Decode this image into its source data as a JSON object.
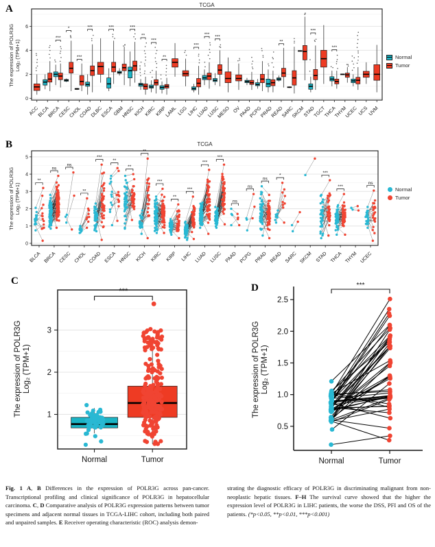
{
  "colors": {
    "normal_box": "#1CB4C5",
    "tumor_box": "#EE3B23",
    "normal_dot": "#29B8D3",
    "tumor_dot": "#F04432",
    "outlier_dot": "#3d3d3d"
  },
  "panels": {
    "a": {
      "letter": "A",
      "title": "TCGA",
      "ylabel1": "The expression of POLR3G",
      "ylabel2": "Log₂ (TPM+1)",
      "legend_normal": "Normal",
      "legend_tumor": "Tumor"
    },
    "b": {
      "letter": "B",
      "title": "TCGA",
      "ylabel1": "The expression of POLR3G",
      "ylabel2": "Log₂ (TPM+1)",
      "legend_normal": "Normal",
      "legend_tumor": "Tumor"
    },
    "c": {
      "letter": "C",
      "ylabel1": "The expression of POLR3G",
      "ylabel2": "Log₂ (TPM+1)"
    },
    "d": {
      "letter": "D",
      "ylabel1": "The expression of POLR3G",
      "ylabel2": "Log₂ (TPM+1)"
    }
  },
  "caption": {
    "left": [
      {
        "t": "Fig. 1  ",
        "b": true
      },
      {
        "t": "A",
        "b": true
      },
      {
        "t": ", "
      },
      {
        "t": "B",
        "b": true
      },
      {
        "t": " Differences in the expression of POLR3G across pan-cancer. Transcriptional profiling and clinical significance of POLR3G in hepatocellular carcinoma. "
      },
      {
        "t": "C",
        "b": true
      },
      {
        "t": ", "
      },
      {
        "t": "D",
        "b": true
      },
      {
        "t": " Comparative analysis of POLR3G expression patterns between tumor specimens and adjacent normal tissues in TCGA-LIHC cohort, including both paired and unpaired samples. "
      },
      {
        "t": "E",
        "b": true
      },
      {
        "t": " Receiver operating characteristic (ROC) analysis demon-"
      }
    ],
    "right": [
      {
        "t": "strating the diagnostic efficacy of POLR3G in discriminating malignant from non-neoplastic hepatic tissues. "
      },
      {
        "t": "F–H",
        "b": true
      },
      {
        "t": " The survival curve showed that the higher the expression level of POLR3G in LIHC patients, the worse the DSS, PFI and OS of the patients. "
      },
      {
        "t": "(*p<0.05, **p<0.01, ***p<0.001)",
        "i": true
      }
    ]
  },
  "chart_data": [
    {
      "id": "panel-a",
      "type": "grouped-boxplot",
      "title": "TCGA",
      "ylabel": "The expression of POLR3G Log2 (TPM+1)",
      "ylim": [
        -0.15,
        7.45
      ],
      "yticks": [
        0,
        2,
        4,
        6
      ],
      "yticks_minor": [
        1,
        3,
        5,
        7
      ],
      "legend": [
        "Normal",
        "Tumor"
      ],
      "legend_position": "right",
      "box_format": "[whisker_low, q1, median, q3, whisker_high]",
      "categories": [
        {
          "name": "ACC",
          "t": [
            0.3,
            0.65,
            0.95,
            1.2,
            2.0
          ],
          "oh": 3.9
        },
        {
          "name": "BLCA",
          "n": [
            0.75,
            1.1,
            1.35,
            1.55,
            2.0
          ],
          "t": [
            0.6,
            1.35,
            1.6,
            2.1,
            3.1
          ],
          "oh": 4.6
        },
        {
          "name": "BRCA",
          "n": [
            1.1,
            1.8,
            2.0,
            2.2,
            2.8
          ],
          "t": [
            0.9,
            1.55,
            1.85,
            2.1,
            2.9
          ],
          "sig": "***",
          "oh": 4.5,
          "on": true
        },
        {
          "name": "CESC",
          "n": [
            1.35,
            1.42,
            1.5,
            1.57,
            1.65
          ],
          "t": [
            0.6,
            2.1,
            2.5,
            3.0,
            4.8
          ],
          "sig": "*",
          "oh": 5.3
        },
        {
          "name": "CHOL",
          "n": [
            0.7,
            0.74,
            0.78,
            0.82,
            0.86
          ],
          "t": [
            0.6,
            1.1,
            1.4,
            1.9,
            2.9
          ],
          "sig": "***"
        },
        {
          "name": "COAD",
          "n": [
            0.3,
            1.0,
            1.15,
            1.35,
            2.0
          ],
          "t": [
            0.5,
            1.9,
            2.3,
            2.7,
            4.5
          ],
          "sig": "***",
          "oh": 5.4
        },
        {
          "name": "DLBC",
          "t": [
            1.3,
            2.0,
            2.65,
            3.0,
            5.0
          ]
        },
        {
          "name": "ESCA",
          "n": [
            0.6,
            0.85,
            1.2,
            1.7,
            2.5
          ],
          "t": [
            1.2,
            2.2,
            2.6,
            3.0,
            4.8
          ],
          "sig": "***",
          "oh": 5.4
        },
        {
          "name": "GBM",
          "n": [
            1.9,
            2.08,
            2.15,
            2.25,
            2.5
          ],
          "t": [
            1.1,
            2.3,
            2.55,
            2.85,
            4.3
          ],
          "oh": 4.4
        },
        {
          "name": "HNSC",
          "n": [
            1.0,
            1.7,
            2.3,
            2.6,
            3.9
          ],
          "t": [
            1.3,
            2.3,
            2.7,
            3.1,
            4.7
          ],
          "sig": "***",
          "oh": 5.4
        },
        {
          "name": "KICH",
          "n": [
            0.7,
            1.0,
            1.15,
            1.25,
            1.6
          ],
          "t": [
            0.3,
            0.75,
            1.0,
            1.2,
            1.8
          ],
          "sig": "**",
          "oh": 4.7,
          "on": true
        },
        {
          "name": "KIRC",
          "n": [
            0.5,
            0.85,
            0.95,
            1.1,
            1.5
          ],
          "t": [
            0.4,
            1.1,
            1.3,
            1.55,
            2.3
          ],
          "sig": "***",
          "oh": 4.3,
          "on": true
        },
        {
          "name": "KIRP",
          "n": [
            0.4,
            0.75,
            0.9,
            1.05,
            1.4
          ],
          "t": [
            0.3,
            0.85,
            1.0,
            1.15,
            1.7
          ],
          "sig": "**",
          "oh": 2.9,
          "on": true
        },
        {
          "name": "LAML",
          "t": [
            1.8,
            2.6,
            3.0,
            3.3,
            4.6
          ]
        },
        {
          "name": "LGG",
          "t": [
            1.0,
            1.85,
            2.05,
            2.3,
            3.3
          ],
          "oh": 4.1
        },
        {
          "name": "LIHC",
          "n": [
            0.5,
            0.7,
            0.8,
            0.95,
            1.2
          ],
          "t": [
            0.3,
            0.95,
            1.25,
            1.65,
            2.7
          ],
          "sig": "***",
          "oh": 3.9
        },
        {
          "name": "LUAD",
          "n": [
            1.1,
            1.55,
            1.7,
            1.9,
            2.4
          ],
          "t": [
            0.8,
            1.55,
            1.85,
            2.1,
            3.0
          ],
          "sig": "***",
          "oh": 4.8,
          "on": true
        },
        {
          "name": "LUSC",
          "n": [
            1.1,
            1.4,
            1.5,
            1.65,
            2.1
          ],
          "t": [
            1.0,
            2.0,
            2.35,
            2.8,
            4.0
          ],
          "sig": "***",
          "oh": 4.6
        },
        {
          "name": "MESO",
          "t": [
            0.5,
            1.3,
            1.65,
            2.2,
            3.4
          ]
        },
        {
          "name": "OV",
          "t": [
            0.7,
            1.45,
            1.65,
            1.95,
            2.9
          ],
          "oh": 3.3
        },
        {
          "name": "PAAD",
          "n": [
            1.1,
            1.3,
            1.4,
            1.5,
            1.7
          ],
          "t": [
            0.7,
            1.15,
            1.3,
            1.5,
            2.2
          ],
          "oh": 3.5
        },
        {
          "name": "PCPG",
          "n": [
            0.8,
            1.05,
            1.15,
            1.3,
            1.6
          ],
          "t": [
            0.6,
            1.3,
            1.6,
            2.0,
            3.1
          ],
          "oh": 4.3
        },
        {
          "name": "PRAD",
          "n": [
            0.5,
            0.95,
            1.2,
            1.6,
            2.4
          ],
          "t": [
            0.5,
            1.05,
            1.3,
            1.55,
            2.3
          ],
          "oh": 3.9,
          "on": true
        },
        {
          "name": "READ",
          "n": [
            1.4,
            1.5,
            1.6,
            1.7,
            1.9
          ],
          "t": [
            0.9,
            1.8,
            2.1,
            2.5,
            4.2
          ],
          "sig": "**"
        },
        {
          "name": "SARC",
          "n": [
            0.86,
            0.89,
            0.92,
            0.95,
            0.98
          ],
          "t": [
            0.4,
            1.1,
            1.7,
            2.3,
            4.3
          ],
          "oh": 5.0
        },
        {
          "name": "SKCM",
          "n": [
            3.9,
            3.93,
            3.95,
            3.97,
            4.0
          ],
          "t": [
            1.5,
            3.2,
            3.9,
            4.4,
            6.8
          ],
          "oh": 7.1
        },
        {
          "name": "STAD",
          "n": [
            0.5,
            0.75,
            1.0,
            1.2,
            1.8
          ],
          "t": [
            0.7,
            1.55,
            1.9,
            2.4,
            4.4
          ],
          "sig": "***",
          "oh": 5.1,
          "on": true
        },
        {
          "name": "TGCT",
          "t": [
            1.2,
            2.6,
            3.3,
            4.0,
            6.1
          ]
        },
        {
          "name": "THCA",
          "n": [
            1.0,
            1.45,
            1.6,
            1.8,
            2.3
          ],
          "t": [
            0.8,
            1.2,
            1.4,
            1.6,
            2.3
          ],
          "sig": "***",
          "oh": 3.7,
          "on": true
        },
        {
          "name": "THYM",
          "n": [
            1.96,
            1.98,
            2.0,
            2.02,
            2.04
          ],
          "t": [
            1.3,
            1.75,
            1.95,
            2.1,
            2.6
          ],
          "oh": 2.9
        },
        {
          "name": "UCEC",
          "n": [
            1.0,
            1.3,
            1.45,
            1.6,
            2.0
          ],
          "t": [
            0.7,
            1.2,
            1.5,
            1.75,
            2.6
          ],
          "oh": 5.6,
          "on": true
        },
        {
          "name": "UCS",
          "t": [
            1.2,
            1.75,
            2.0,
            2.25,
            3.0
          ]
        },
        {
          "name": "UVM",
          "t": [
            0.5,
            1.5,
            2.0,
            2.8,
            4.45
          ]
        }
      ]
    },
    {
      "id": "panel-b",
      "type": "paired-dot-columns",
      "title": "TCGA",
      "ylabel": "The expression of POLR3G Log2 (TPM+1)",
      "ylim": [
        -0.12,
        5.35
      ],
      "yticks": [
        0,
        1,
        2,
        3,
        4,
        5
      ],
      "legend": [
        "Normal",
        "Tumor"
      ],
      "legend_position": "right",
      "range_format": "[min, max] of paired sample values",
      "categories": [
        {
          "name": "BLCA",
          "sig": "**",
          "pairs": 14,
          "n": [
            0.75,
            2.05
          ],
          "t": [
            0.15,
            3.2
          ]
        },
        {
          "name": "BRCA",
          "sig": "ns",
          "pairs": 88,
          "n": [
            0.85,
            2.8
          ],
          "t": [
            0.9,
            3.9
          ]
        },
        {
          "name": "CESC",
          "sig": "ns",
          "pairs": 3,
          "n": [
            1.2,
            1.65
          ],
          "t": [
            0.8,
            4.1
          ]
        },
        {
          "name": "CHOL",
          "sig": "**",
          "pairs": 9,
          "n": [
            0.6,
            1.0
          ],
          "t": [
            0.9,
            2.6
          ]
        },
        {
          "name": "COAD",
          "sig": "***",
          "pairs": 42,
          "n": [
            0.7,
            2.3
          ],
          "t": [
            0.2,
            4.55
          ]
        },
        {
          "name": "ESCA",
          "sig": "**",
          "pairs": 12,
          "n": [
            1.05,
            3.9
          ],
          "t": [
            1.3,
            4.35
          ]
        },
        {
          "name": "HNSC",
          "sig": "**",
          "pairs": 43,
          "n": [
            0.85,
            3.9
          ],
          "t": [
            1.35,
            4.0
          ]
        },
        {
          "name": "KICH",
          "sig": "**",
          "pairs": 25,
          "n": [
            0.55,
            1.9
          ],
          "t": [
            0.3,
            4.9
          ]
        },
        {
          "name": "KIRC",
          "sig": "***",
          "pairs": 70,
          "n": [
            0.6,
            2.7
          ],
          "t": [
            0.6,
            3.15
          ]
        },
        {
          "name": "KIRP",
          "sig": "**",
          "pairs": 32,
          "n": [
            0.5,
            1.4
          ],
          "t": [
            0.3,
            2.25
          ]
        },
        {
          "name": "LIHC",
          "sig": "***",
          "pairs": 50,
          "n": [
            0.2,
            1.25
          ],
          "t": [
            0.25,
            2.7
          ]
        },
        {
          "name": "LUAD",
          "sig": "***",
          "pairs": 56,
          "n": [
            0.9,
            2.35
          ],
          "t": [
            0.55,
            4.25
          ]
        },
        {
          "name": "LUSC",
          "sig": "***",
          "pairs": 49,
          "n": [
            0.9,
            2.1
          ],
          "t": [
            1.1,
            4.55
          ]
        },
        {
          "name": "PAAD",
          "sig": "ns",
          "pairs": 4,
          "n": [
            1.05,
            2.0
          ],
          "t": [
            1.05,
            1.7
          ]
        },
        {
          "name": "PCPG",
          "sig": "ns",
          "pairs": 3,
          "n": [
            0.75,
            1.45
          ],
          "t": [
            1.45,
            2.85
          ]
        },
        {
          "name": "PRAD",
          "sig": "ns",
          "pairs": 52,
          "n": [
            0.45,
            3.3
          ],
          "t": [
            0.3,
            2.8
          ]
        },
        {
          "name": "READ",
          "sig": "*",
          "pairs": 9,
          "n": [
            1.2,
            1.9
          ],
          "t": [
            1.2,
            3.5
          ]
        },
        {
          "name": "SARC",
          "sig": "",
          "pairs": 2,
          "n": [
            0.7,
            1.05
          ],
          "t": [
            0.7,
            1.8
          ]
        },
        {
          "name": "SKCM",
          "sig": "",
          "pairs": 1,
          "n": [
            3.95,
            3.95
          ],
          "t": [
            4.9,
            4.9
          ]
        },
        {
          "name": "STAD",
          "sig": "***",
          "pairs": 33,
          "n": [
            0.3,
            2.8
          ],
          "t": [
            0.45,
            3.65
          ]
        },
        {
          "name": "THCA",
          "sig": "***",
          "pairs": 56,
          "n": [
            0.5,
            2.2
          ],
          "t": [
            0.5,
            2.85
          ]
        },
        {
          "name": "THYM",
          "sig": "",
          "pairs": 2,
          "n": [
            1.95,
            2.05
          ],
          "t": [
            1.65,
            2.15
          ]
        },
        {
          "name": "UCEC",
          "sig": "ns",
          "pairs": 23,
          "n": [
            0.9,
            2.1
          ],
          "t": [
            0.15,
            3.05
          ]
        }
      ]
    },
    {
      "id": "panel-c",
      "type": "box-jitter",
      "ylabel": "The expression of POLR3G Log2 (TPM+1)",
      "ylim": [
        0.18,
        3.95
      ],
      "yticks": [
        1,
        2,
        3
      ],
      "yticks_minor": [
        0.5,
        1.5,
        2.5,
        3.5
      ],
      "categories": [
        "Normal",
        "Tumor"
      ],
      "sig": "***",
      "normal": {
        "box": [
          0.55,
          0.68,
          0.77,
          0.93,
          1.15
        ],
        "points_range": [
          0.28,
          1.22
        ],
        "points_n": 55
      },
      "tumor": {
        "box": [
          0.3,
          0.93,
          1.27,
          1.67,
          2.65
        ],
        "points_range": [
          0.3,
          3.05
        ],
        "points_n": 230,
        "outlier": 3.62
      }
    },
    {
      "id": "panel-d",
      "type": "paired-lines",
      "ylabel": "The expression of POLR3G Log2 (TPM+1)",
      "ylim": [
        0.12,
        2.62
      ],
      "yticks": [
        0.5,
        1.0,
        1.5,
        2.0,
        2.5
      ],
      "categories": [
        "Normal",
        "Tumor"
      ],
      "sig": "***",
      "pairs": 50,
      "normal_range": [
        0.2,
        1.21
      ],
      "tumor_range": [
        0.25,
        2.51
      ],
      "pairs_explicit": [
        [
          0.21,
          0.35
        ],
        [
          1.21,
          2.1
        ],
        [
          0.58,
          0.28
        ],
        [
          1.02,
          2.51
        ],
        [
          0.95,
          2.35
        ],
        [
          0.88,
          2.28
        ],
        [
          0.6,
          0.47
        ],
        [
          0.73,
          1.51
        ],
        [
          1.05,
          2.05
        ]
      ]
    }
  ]
}
